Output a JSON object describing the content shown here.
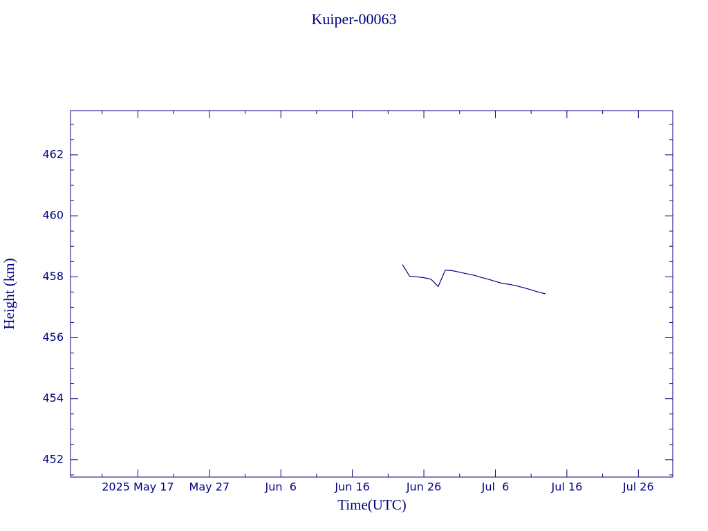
{
  "chart_data": {
    "type": "line",
    "title": "Kuiper-00063",
    "x_label": "Time(UTC)",
    "y_label": "Height (km)",
    "x": [
      "2025-06-23",
      "2025-06-24",
      "2025-06-25",
      "2025-06-26",
      "2025-06-27",
      "2025-06-28",
      "2025-06-29",
      "2025-06-30",
      "2025-07-01",
      "2025-07-02",
      "2025-07-03",
      "2025-07-04",
      "2025-07-05",
      "2025-07-06",
      "2025-07-07",
      "2025-07-08",
      "2025-07-09",
      "2025-07-10",
      "2025-07-11",
      "2025-07-12",
      "2025-07-13"
    ],
    "values": [
      458.4,
      458.02,
      458.0,
      457.97,
      457.92,
      457.68,
      458.22,
      458.2,
      458.15,
      458.1,
      458.05,
      457.98,
      457.92,
      457.85,
      457.78,
      457.75,
      457.7,
      457.64,
      457.57,
      457.5,
      457.44
    ],
    "color": "#000080",
    "xlim": [
      "2025-05-07",
      "2025-07-31"
    ],
    "xticks": [
      {
        "value": "2025-05-17",
        "label": "2025 May 17"
      },
      {
        "value": "2025-05-27",
        "label": "May 27"
      },
      {
        "value": "2025-06-06",
        "label": "Jun  6"
      },
      {
        "value": "2025-06-16",
        "label": "Jun 16"
      },
      {
        "value": "2025-06-26",
        "label": "Jun 26"
      },
      {
        "value": "2025-07-06",
        "label": "Jul  6"
      },
      {
        "value": "2025-07-16",
        "label": "Jul 16"
      },
      {
        "value": "2025-07-26",
        "label": "Jul 26"
      }
    ],
    "xticks_minor": [
      "2025-05-12",
      "2025-05-22",
      "2025-06-01",
      "2025-06-11",
      "2025-06-21",
      "2025-07-01",
      "2025-07-11",
      "2025-07-21",
      "2025-07-31"
    ],
    "ylim": [
      451.43,
      463.45
    ],
    "yticks": [
      452,
      454,
      456,
      458,
      460,
      462
    ],
    "yticks_minor": [
      451.5,
      452.5,
      453,
      453.5,
      454.5,
      455,
      455.5,
      456.5,
      457,
      457.5,
      458.5,
      459,
      459.5,
      460.5,
      461,
      461.5,
      462.5,
      463
    ],
    "grid": false
  }
}
